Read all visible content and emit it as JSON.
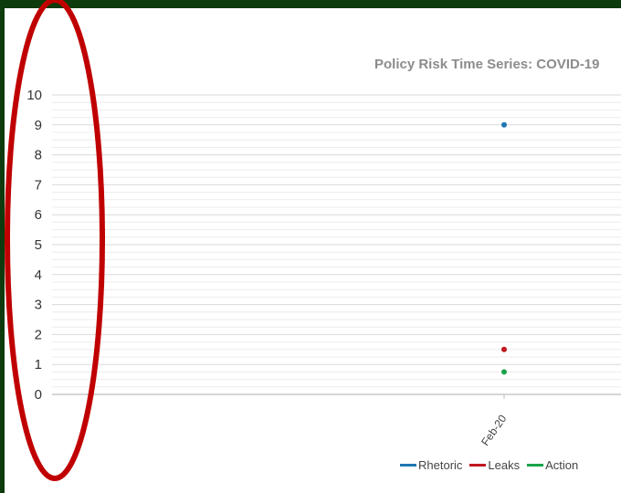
{
  "chart_data": {
    "type": "scatter",
    "title": "Policy Risk Time Series: COVID-19",
    "categories": [
      "Feb-20"
    ],
    "ylim": [
      0,
      10
    ],
    "yticks": [
      0,
      1,
      2,
      3,
      4,
      5,
      6,
      7,
      8,
      9,
      10
    ],
    "grid": true,
    "legend_position": "bottom-right",
    "series": [
      {
        "name": "Rhetoric",
        "color": "#1f77b4",
        "values": [
          9.0
        ]
      },
      {
        "name": "Leaks",
        "color": "#c0181f",
        "values": [
          1.5
        ]
      },
      {
        "name": "Action",
        "color": "#1aa34a",
        "values": [
          0.75
        ]
      }
    ]
  },
  "annotation": {
    "shape": "ellipse",
    "color": "#c00000"
  }
}
